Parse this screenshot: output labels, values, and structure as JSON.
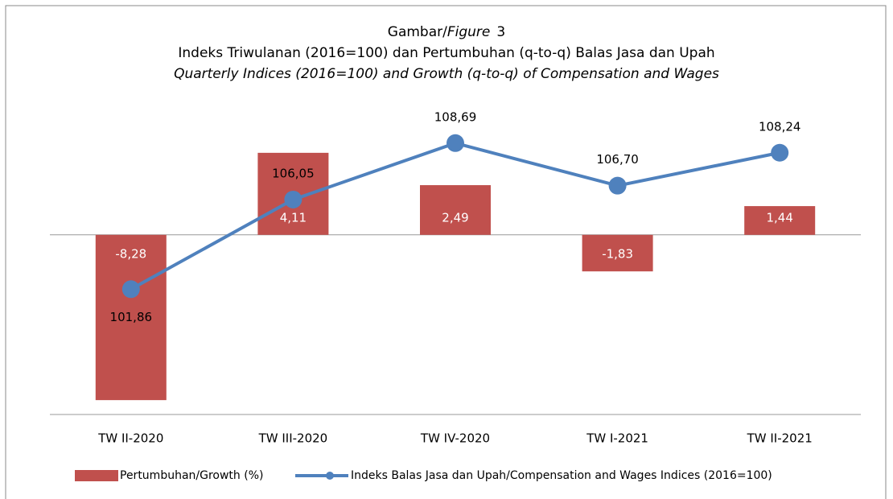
{
  "chart_data": {
    "type": "bar+line",
    "title_parts": [
      "Gambar/",
      "Figure",
      "3"
    ],
    "subtitle": "Indeks Triwulanan (2016=100) dan Pertumbuhan (q-to-q) Balas Jasa dan Upah",
    "subtitle_en": "Quarterly Indices (2016=100) and Growth (q-to-q) of Compensation and Wages",
    "categories": [
      "TW II-2020",
      "TW III-2020",
      "TW IV-2020",
      "TW I-2021",
      "TW II-2021"
    ],
    "series": [
      {
        "name": "Pertumbuhan/Growth (%)",
        "type": "bar",
        "color": "#c0504d",
        "values": [
          -8.28,
          4.11,
          2.49,
          -1.83,
          1.44
        ],
        "value_labels": [
          "-8,28",
          "4,11",
          "2,49",
          "-1,83",
          "1,44"
        ]
      },
      {
        "name": "Indeks Balas Jasa dan Upah/Compensation and Wages Indices (2016=100)",
        "type": "line",
        "axis": "y2",
        "color": "#4f81bd",
        "values": [
          101.86,
          106.05,
          108.69,
          106.7,
          108.24
        ],
        "value_labels": [
          "101,86",
          "106,05",
          "108,69",
          "106,70",
          "108,24"
        ]
      }
    ],
    "ylim": [
      -9,
      6
    ],
    "y2lim": [
      96,
      110
    ],
    "legend": "bottom"
  }
}
